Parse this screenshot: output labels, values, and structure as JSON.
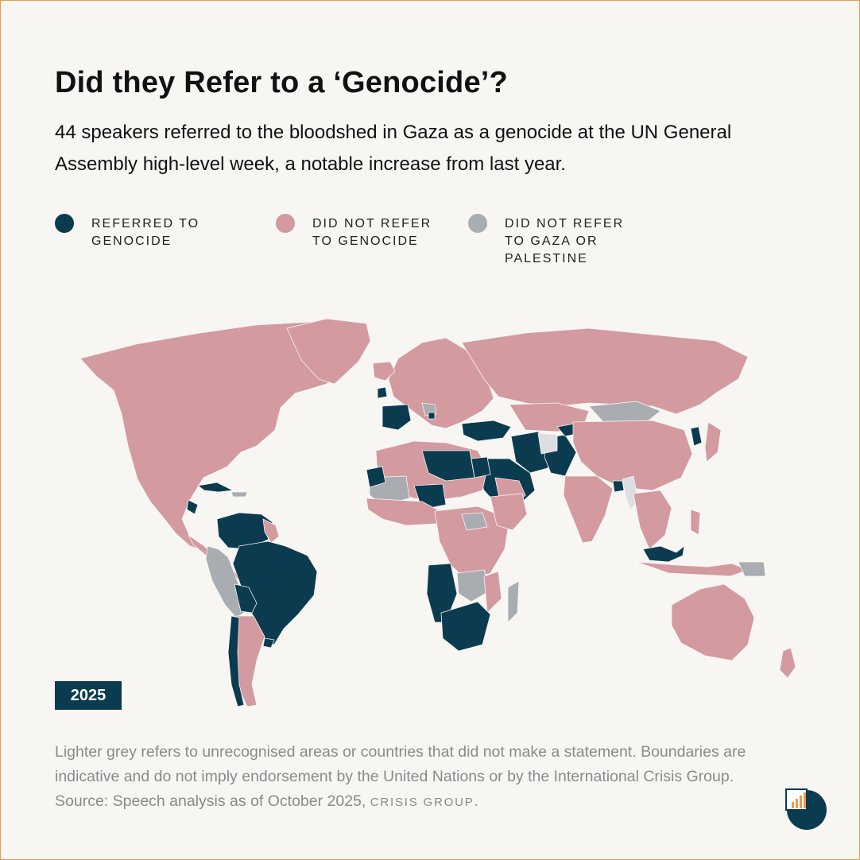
{
  "header": {
    "title": "Did they Refer to a ‘Genocide’?",
    "subtitle": "44 speakers referred to the bloodshed in Gaza as a genocide at the UN General Assembly high-level week, a notable increase from last year."
  },
  "legend": [
    {
      "label": "REFERRED TO\nGENOCIDE",
      "color": "#0b3b4f"
    },
    {
      "label": "DID NOT REFER\nTO GENOCIDE",
      "color": "#d39aa0"
    },
    {
      "label": "DID NOT REFER\nTO GAZA OR\nPALESTINE",
      "color": "#a9adb1"
    }
  ],
  "map": {
    "colors": {
      "referred": "#0b3b4f",
      "not_referred": "#d39aa0",
      "no_reference": "#a9adb1",
      "unrecognised": "#dcdedf"
    }
  },
  "year_badge": "2025",
  "footer": {
    "note": "Lighter grey refers to unrecognised areas or countries that did not make a statement. Boundaries are indicative and do not imply endorsement by the United Nations or by the International Crisis Group. Source: Speech analysis as of October 2025,",
    "source": "CRISIS GROUP",
    "end": "."
  },
  "logo": "crisis-group-logo"
}
